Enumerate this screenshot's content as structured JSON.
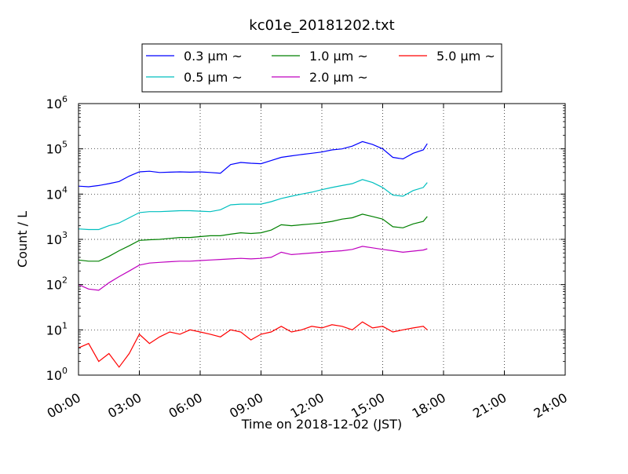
{
  "chart_data": {
    "type": "line",
    "title": "kc01e_20181202.txt",
    "xlabel": "Time on 2018-12-02 (JST)",
    "ylabel": "Count / L",
    "x_unit": "hours",
    "xlim": [
      0,
      24
    ],
    "ylim": [
      1,
      1000000
    ],
    "y_scale": "log",
    "grid": true,
    "legend_position": "top-center",
    "x_tick_labels": [
      "00:00",
      "03:00",
      "06:00",
      "09:00",
      "12:00",
      "15:00",
      "18:00",
      "21:00",
      "24:00"
    ],
    "y_ticks": [
      {
        "base": "10",
        "exp": "0"
      },
      {
        "base": "10",
        "exp": "1"
      },
      {
        "base": "10",
        "exp": "2"
      },
      {
        "base": "10",
        "exp": "3"
      },
      {
        "base": "10",
        "exp": "4"
      },
      {
        "base": "10",
        "exp": "5"
      },
      {
        "base": "10",
        "exp": "6"
      }
    ],
    "x": [
      0.0,
      0.5,
      1.0,
      1.5,
      2.0,
      2.5,
      3.0,
      3.5,
      4.0,
      4.5,
      5.0,
      5.5,
      6.0,
      6.5,
      7.0,
      7.5,
      8.0,
      8.5,
      9.0,
      9.5,
      10.0,
      10.5,
      11.0,
      11.5,
      12.0,
      12.5,
      13.0,
      13.5,
      14.0,
      14.5,
      15.0,
      15.5,
      16.0,
      16.5,
      17.0,
      17.2
    ],
    "series": [
      {
        "name": "0.3 μm ~",
        "color": "#0000ff",
        "values": [
          15000,
          14500,
          15500,
          17000,
          19000,
          25000,
          31000,
          32000,
          30000,
          30500,
          31000,
          30500,
          31000,
          30000,
          29000,
          45000,
          50000,
          48000,
          47000,
          55000,
          65000,
          70000,
          75000,
          80000,
          85000,
          95000,
          100000,
          115000,
          145000,
          125000,
          100000,
          65000,
          60000,
          80000,
          95000,
          130000
        ]
      },
      {
        "name": "0.5 μm ~",
        "color": "#00bfbf",
        "values": [
          1700,
          1650,
          1650,
          2000,
          2300,
          3000,
          3900,
          4100,
          4100,
          4200,
          4300,
          4300,
          4200,
          4100,
          4500,
          5800,
          6000,
          6000,
          6000,
          6800,
          8000,
          9000,
          10000,
          11000,
          12500,
          14000,
          15500,
          17000,
          21000,
          18000,
          14000,
          9500,
          9000,
          12000,
          14000,
          18000
        ]
      },
      {
        "name": "1.0 μm ~",
        "color": "#008000",
        "values": [
          350,
          330,
          330,
          420,
          560,
          720,
          950,
          980,
          1000,
          1050,
          1100,
          1100,
          1150,
          1200,
          1200,
          1300,
          1400,
          1350,
          1400,
          1600,
          2100,
          2000,
          2100,
          2200,
          2300,
          2500,
          2800,
          3000,
          3600,
          3200,
          2800,
          1900,
          1800,
          2200,
          2500,
          3200
        ]
      },
      {
        "name": "2.0 μm ~",
        "color": "#bf00bf",
        "values": [
          100,
          80,
          75,
          110,
          150,
          200,
          270,
          300,
          310,
          320,
          330,
          330,
          340,
          350,
          360,
          370,
          380,
          370,
          380,
          400,
          520,
          460,
          480,
          500,
          520,
          540,
          560,
          600,
          700,
          650,
          600,
          560,
          520,
          550,
          580,
          620
        ]
      },
      {
        "name": "5.0 μm ~",
        "color": "#ff0000",
        "values": [
          4,
          5,
          2,
          3,
          1.5,
          3,
          8,
          5,
          7,
          9,
          8,
          10,
          9,
          8,
          7,
          10,
          9,
          6,
          8,
          9,
          12,
          9,
          10,
          12,
          11,
          13,
          12,
          10,
          15,
          11,
          12,
          9,
          10,
          11,
          12,
          10
        ]
      }
    ]
  }
}
